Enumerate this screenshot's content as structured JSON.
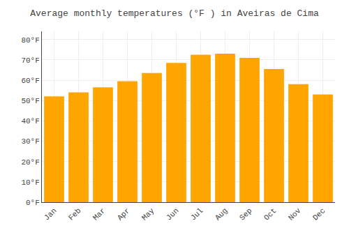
{
  "chart_data": {
    "type": "bar",
    "title": "Average monthly temperatures (°F ) in Aveiras de Cima",
    "categories": [
      "Jan",
      "Feb",
      "Mar",
      "Apr",
      "May",
      "Jun",
      "Jul",
      "Aug",
      "Sep",
      "Oct",
      "Nov",
      "Dec"
    ],
    "values": [
      52,
      54,
      56.5,
      59.5,
      63.5,
      68.5,
      72.5,
      73,
      71,
      65.5,
      58,
      53
    ],
    "color": "#FFA500",
    "ylim": [
      0,
      84
    ],
    "yticks": [
      {
        "value": 0,
        "label": "0°F"
      },
      {
        "value": 10,
        "label": "10°F"
      },
      {
        "value": 20,
        "label": "20°F"
      },
      {
        "value": 30,
        "label": "30°F"
      },
      {
        "value": 40,
        "label": "40°F"
      },
      {
        "value": 50,
        "label": "50°F"
      },
      {
        "value": 60,
        "label": "60°F"
      },
      {
        "value": 70,
        "label": "70°F"
      },
      {
        "value": 80,
        "label": "80°F"
      }
    ],
    "grid": true
  }
}
